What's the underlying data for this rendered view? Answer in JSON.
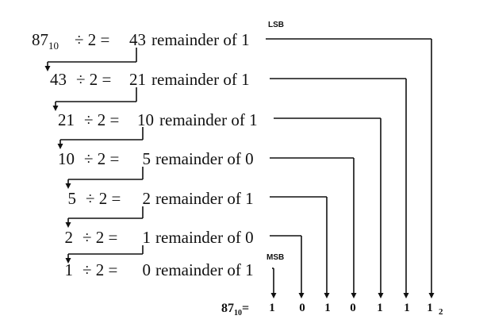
{
  "steps": [
    {
      "dividend": "87",
      "dividend_base": "10",
      "divisor": "2",
      "quotient": "43",
      "remainder_text": "remainder of",
      "remainder": "1"
    },
    {
      "dividend": "43",
      "dividend_base": "",
      "divisor": "2",
      "quotient": "21",
      "remainder_text": "remainder of",
      "remainder": "1"
    },
    {
      "dividend": "21",
      "dividend_base": "",
      "divisor": "2",
      "quotient": "10",
      "remainder_text": "remainder of",
      "remainder": "1"
    },
    {
      "dividend": "10",
      "dividend_base": "",
      "divisor": "2",
      "quotient": "5",
      "remainder_text": "remainder of",
      "remainder": "0"
    },
    {
      "dividend": "5",
      "dividend_base": "",
      "divisor": "2",
      "quotient": "2",
      "remainder_text": "remainder of",
      "remainder": "1"
    },
    {
      "dividend": "2",
      "dividend_base": "",
      "divisor": "2",
      "quotient": "1",
      "remainder_text": "remainder of",
      "remainder": "0"
    },
    {
      "dividend": "1",
      "dividend_base": "",
      "divisor": "2",
      "quotient": "0",
      "remainder_text": "remainder of",
      "remainder": "1"
    }
  ],
  "lsb_label": "LSB",
  "msb_label": "MSB",
  "result": {
    "lhs": "87",
    "lhs_base": "10",
    "equals": "=",
    "bits": [
      "1",
      "0",
      "1",
      "0",
      "1",
      "1",
      "1"
    ],
    "result_base": "2"
  }
}
